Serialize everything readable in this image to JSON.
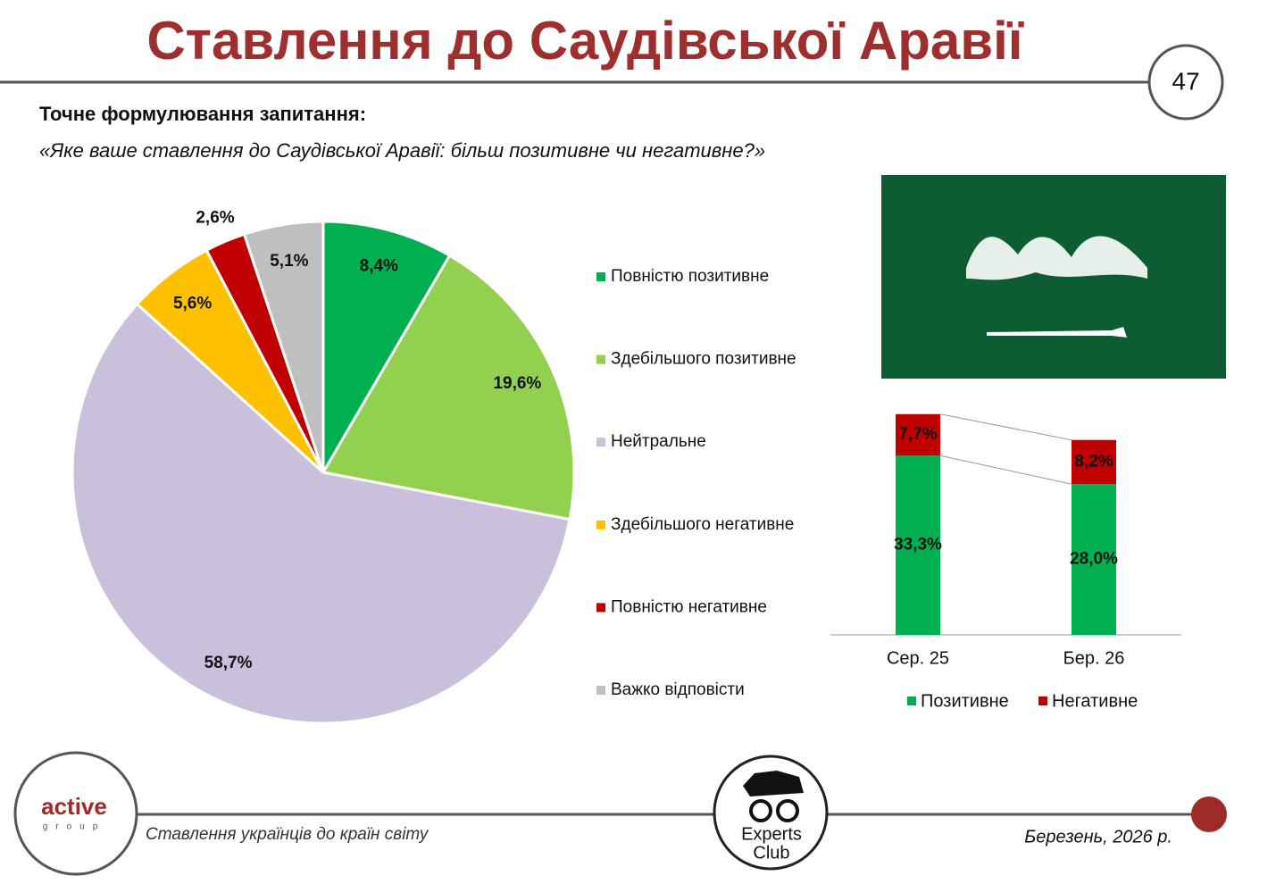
{
  "header": {
    "title": "Ставлення до Саудівської Аравії",
    "page_number": "47",
    "question_label": "Точне формулювання запитання:",
    "question": "«Яке ваше ставлення до Саудівської Аравії: більш позитивне чи негативне?»"
  },
  "chart_data": [
    {
      "type": "pie",
      "categories": [
        "Повністю позитивне",
        "Здебільшого позитивне",
        "Нейтральне",
        "Здебільшого негативне",
        "Повністю негативне",
        "Важко відповісти"
      ],
      "values": [
        8.4,
        19.6,
        58.7,
        5.6,
        2.6,
        5.1
      ],
      "value_labels": [
        "8,4%",
        "19,6%",
        "58,7%",
        "5,6%",
        "2,6%",
        "5,1%"
      ],
      "colors": [
        "#00b050",
        "#92d050",
        "#cbc0dc",
        "#ffc000",
        "#c00000",
        "#bfbfbf"
      ]
    },
    {
      "type": "stacked_bar",
      "categories": [
        "Сер. 25",
        "Бер. 26"
      ],
      "series": [
        {
          "name": "Позитивне",
          "color": "#00b050",
          "values": [
            33.3,
            28.0
          ],
          "value_labels": [
            "33,3%",
            "28,0%"
          ]
        },
        {
          "name": "Негативне",
          "color": "#c00000",
          "values": [
            7.7,
            8.2
          ],
          "value_labels": [
            "7,7%",
            "8,2%"
          ]
        }
      ]
    }
  ],
  "footer": {
    "left_logo": "active",
    "left_logo_sub": "group",
    "caption": "Ставлення українців до країн світу",
    "center_logo_line1": "Experts",
    "center_logo_line2": "Club",
    "date": "Березень, 2026 р."
  }
}
